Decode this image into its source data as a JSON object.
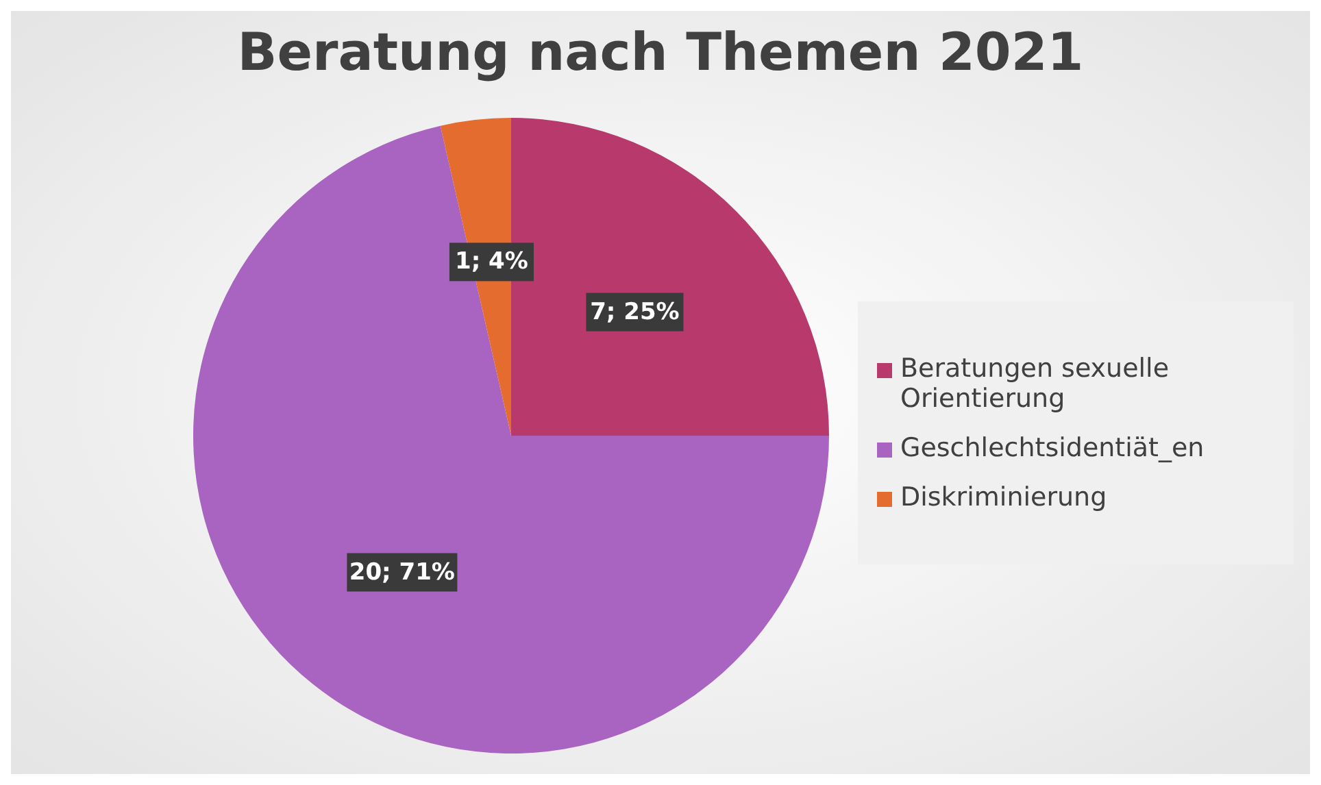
{
  "chart_data": {
    "type": "pie",
    "title": "Beratung nach Themen 2021",
    "categories": [
      "Beratungen sexuelle Orientierung",
      "Geschlechtsidentiät_en",
      "Diskriminierung"
    ],
    "values": [
      7,
      20,
      1
    ],
    "colors": [
      "#b8396b",
      "#a964c1",
      "#e46c2e"
    ],
    "value_labels": [
      "7; 25%",
      "20; 71%",
      "1; 4%"
    ],
    "legend": "right"
  }
}
